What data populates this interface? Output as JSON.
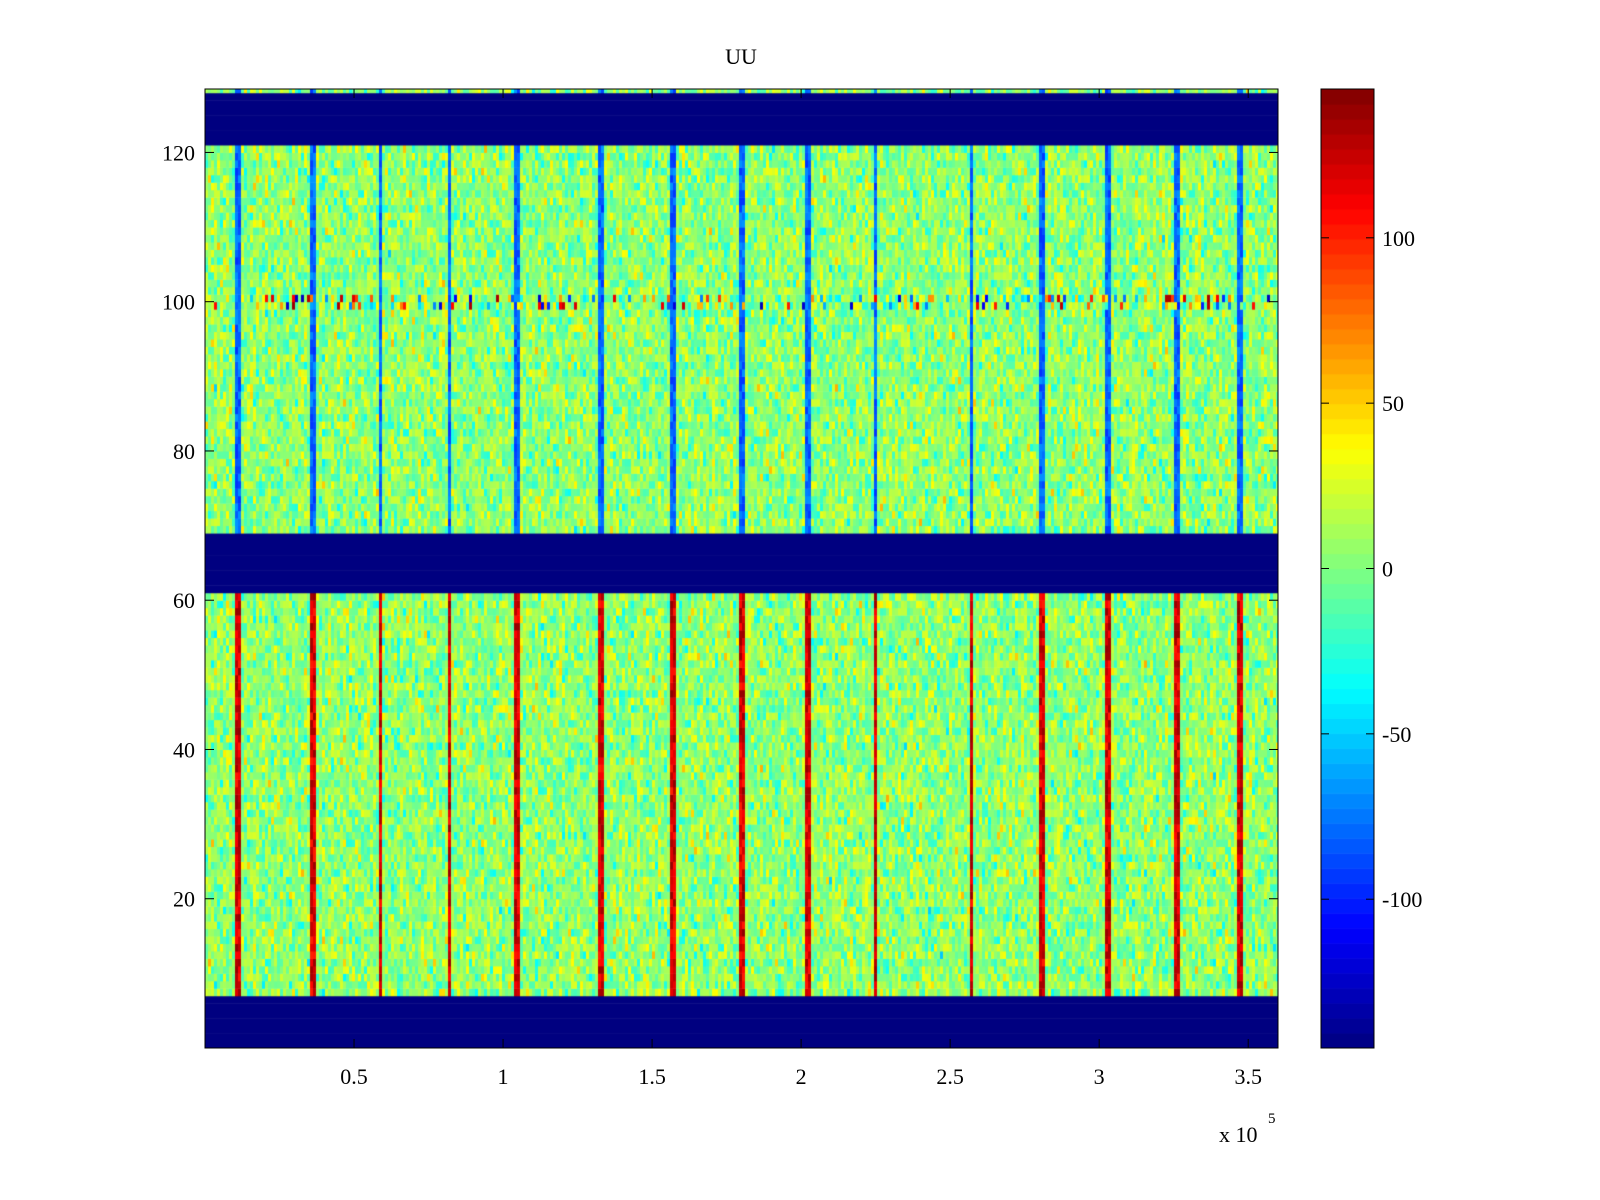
{
  "chart_data": {
    "type": "heatmap",
    "title": "UU",
    "xlabel": "",
    "ylabel": "",
    "xlim": [
      0,
      360000
    ],
    "ylim": [
      0,
      128.5
    ],
    "x_ticks": [
      0.5,
      1,
      1.5,
      2,
      2.5,
      3,
      3.5
    ],
    "x_tick_labels": [
      "0.5",
      "1",
      "1.5",
      "2",
      "2.5",
      "3",
      "3.5"
    ],
    "x_exponent_label": "x 10",
    "x_exponent_power": "5",
    "y_ticks": [
      20,
      40,
      60,
      80,
      100,
      120
    ],
    "y_tick_labels": [
      "20",
      "40",
      "60",
      "80",
      "100",
      "120"
    ],
    "colormap": "jet",
    "clim": [
      -145,
      145
    ],
    "colorbar": {
      "ticks": [
        -100,
        -50,
        0,
        50,
        100
      ],
      "tick_labels": [
        "-100",
        "-50",
        "0",
        "50",
        "100"
      ],
      "placement": "right"
    },
    "empty_bands": [
      {
        "from_row": 0,
        "to_row": 7,
        "value": -145
      },
      {
        "from_row": 61,
        "to_row": 69,
        "value": -145
      },
      {
        "from_row": 121,
        "to_row": 128.5,
        "value": -145
      }
    ],
    "background_mean": 5,
    "background_spread": 18,
    "vertical_spike_columns_x": [
      11000,
      36000,
      59000,
      82000,
      105000,
      133000,
      157000,
      180000,
      202000,
      225000,
      257000,
      281000,
      303000,
      326000,
      347000
    ],
    "lower_block_spike_value": 140,
    "upper_block_spike_value": -95,
    "high_variance_row": {
      "row": 100,
      "range": [
        -130,
        140
      ]
    },
    "grid": false
  }
}
